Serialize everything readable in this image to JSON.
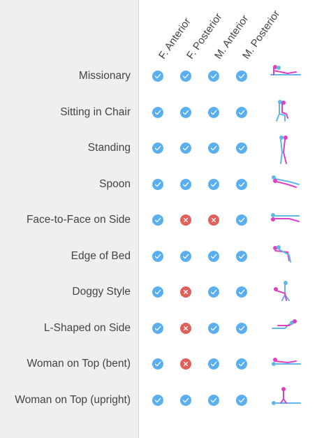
{
  "chart_data": {
    "type": "table",
    "columns": [
      "F. Anterior",
      "F. Posterior",
      "M. Anterior",
      "M. Posterior"
    ],
    "rows": [
      {
        "label": "Missionary",
        "values": [
          "yes",
          "yes",
          "yes",
          "yes"
        ],
        "icon": "missionary-figure-icon"
      },
      {
        "label": "Sitting in Chair",
        "values": [
          "yes",
          "yes",
          "yes",
          "yes"
        ],
        "icon": "sitting-in-chair-figure-icon"
      },
      {
        "label": "Standing",
        "values": [
          "yes",
          "yes",
          "yes",
          "yes"
        ],
        "icon": "standing-figure-icon"
      },
      {
        "label": "Spoon",
        "values": [
          "yes",
          "yes",
          "yes",
          "yes"
        ],
        "icon": "spoon-figure-icon"
      },
      {
        "label": "Face-to-Face on Side",
        "values": [
          "yes",
          "no",
          "no",
          "yes"
        ],
        "icon": "face-to-face-on-side-figure-icon"
      },
      {
        "label": "Edge of Bed",
        "values": [
          "yes",
          "yes",
          "yes",
          "yes"
        ],
        "icon": "edge-of-bed-figure-icon"
      },
      {
        "label": "Doggy Style",
        "values": [
          "yes",
          "no",
          "yes",
          "yes"
        ],
        "icon": "doggy-style-figure-icon"
      },
      {
        "label": "L-Shaped on Side",
        "values": [
          "yes",
          "no",
          "yes",
          "yes"
        ],
        "icon": "l-shaped-on-side-figure-icon"
      },
      {
        "label": "Woman on Top (bent)",
        "values": [
          "yes",
          "no",
          "yes",
          "yes"
        ],
        "icon": "woman-on-top-bent-figure-icon"
      },
      {
        "label": "Woman on Top (upright)",
        "values": [
          "yes",
          "yes",
          "yes",
          "yes"
        ],
        "icon": "woman-on-top-upright-figure-icon"
      }
    ]
  },
  "colors": {
    "yes": "#5aaff0",
    "no": "#e0605c",
    "female_figure": "#e040c0",
    "male_figure": "#60b8e8",
    "text": "#444444"
  }
}
